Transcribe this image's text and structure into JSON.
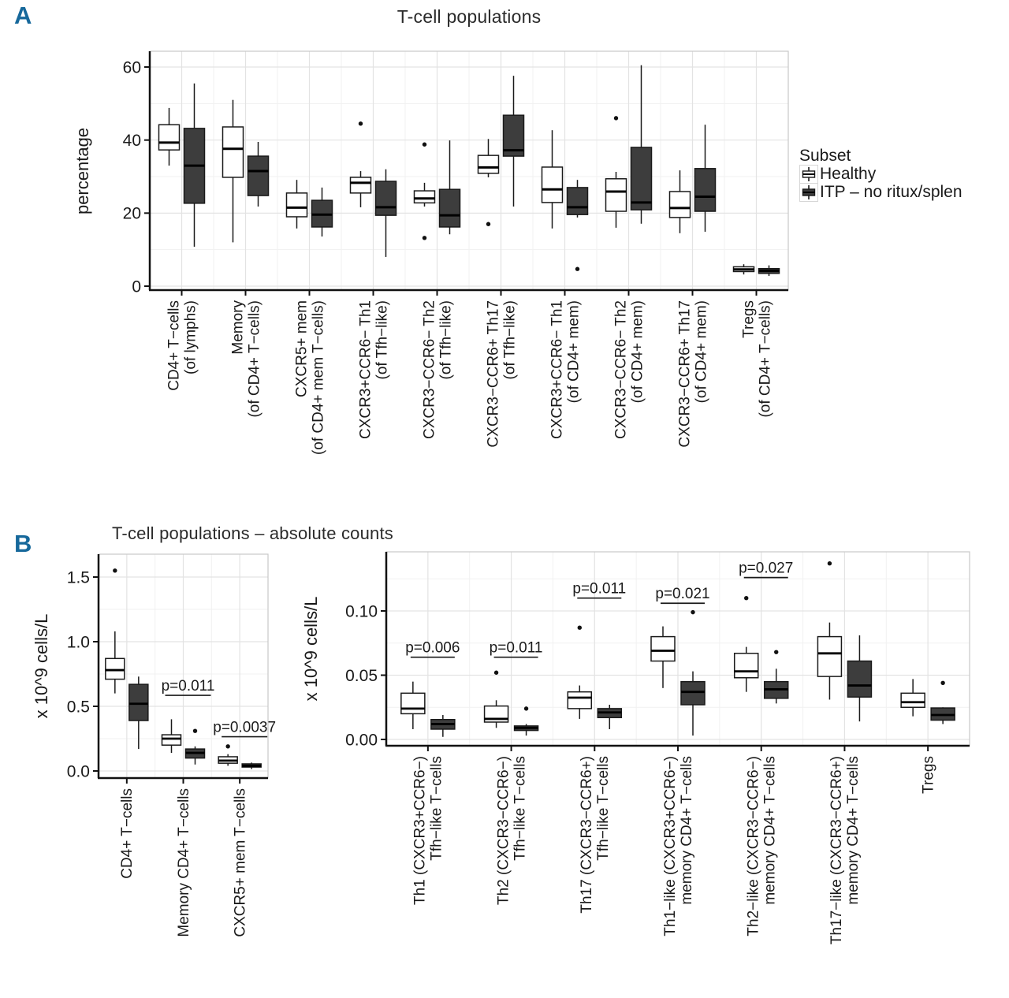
{
  "panel_a": {
    "label": "A",
    "title": "T-cell populations",
    "accent_color": "#16689B",
    "legend": {
      "title": "Subset",
      "items": [
        {
          "label": "Healthy",
          "fill": "#ffffff"
        },
        {
          "label": "ITP – no ritux/splen",
          "fill": "#3d3d3d"
        }
      ]
    }
  },
  "panel_b": {
    "label": "B",
    "title": "T-cell populations – absolute counts"
  },
  "chart_data": [
    {
      "id": "chart-panel-a",
      "type": "boxplot",
      "title": "T-cell populations",
      "ylabel": "percentage",
      "ylim": [
        0,
        64
      ],
      "yticks": [
        0,
        20,
        40,
        60
      ],
      "ytick_labels": [
        "0",
        "20",
        "40",
        "60"
      ],
      "grid": "on",
      "legend_position": "right",
      "categories": [
        [
          "CD4+ T−cells",
          "(of lymphs)"
        ],
        [
          "Memory",
          "(of CD4+ T−cells)"
        ],
        [
          "CXCR5+ mem",
          "(of CD4+ mem T−cells)"
        ],
        [
          "CXCR3+CCR6− Th1",
          "(of Tfh−like)"
        ],
        [
          "CXCR3−CCR6− Th2",
          "(of Tfh−like)"
        ],
        [
          "CXCR3−CCR6+ Th17",
          "(of Tfh−like)"
        ],
        [
          "CXCR3+CCR6− Th1",
          "(of CD4+ mem)"
        ],
        [
          "CXCR3−CCR6− Th2",
          "(of CD4+ mem)"
        ],
        [
          "CXCR3−CCR6+ Th17",
          "(of CD4+ mem)"
        ],
        [
          "Tregs",
          "(of CD4+ T−cells)"
        ]
      ],
      "series": [
        {
          "name": "Healthy",
          "fill": "#ffffff",
          "boxes": [
            {
              "whislo": 33.0,
              "q1": 37.3,
              "med": 39.3,
              "q3": 44.2,
              "whishi": 48.8,
              "outliers": []
            },
            {
              "whislo": 12.0,
              "q1": 29.8,
              "med": 37.6,
              "q3": 43.6,
              "whishi": 51.0,
              "outliers": []
            },
            {
              "whislo": 15.8,
              "q1": 19.0,
              "med": 21.5,
              "q3": 25.5,
              "whishi": 29.1,
              "outliers": []
            },
            {
              "whislo": 21.6,
              "q1": 25.5,
              "med": 28.3,
              "q3": 29.8,
              "whishi": 31.5,
              "outliers": [
                44.5
              ]
            },
            {
              "whislo": 21.8,
              "q1": 22.8,
              "med": 24.0,
              "q3": 26.1,
              "whishi": 28.3,
              "outliers": [
                38.8,
                13.2
              ]
            },
            {
              "whislo": 29.8,
              "q1": 30.9,
              "med": 32.5,
              "q3": 35.8,
              "whishi": 40.3,
              "outliers": [
                17.0
              ]
            },
            {
              "whislo": 15.8,
              "q1": 22.9,
              "med": 26.5,
              "q3": 32.6,
              "whishi": 42.7,
              "outliers": []
            },
            {
              "whislo": 16.0,
              "q1": 20.5,
              "med": 25.9,
              "q3": 29.4,
              "whishi": 31.3,
              "outliers": [
                46.0
              ]
            },
            {
              "whislo": 14.5,
              "q1": 18.8,
              "med": 21.4,
              "q3": 25.9,
              "whishi": 31.7,
              "outliers": []
            },
            {
              "whislo": 3.2,
              "q1": 4.0,
              "med": 4.6,
              "q3": 5.3,
              "whishi": 6.0,
              "outliers": []
            }
          ]
        },
        {
          "name": "ITP – no ritux/splen",
          "fill": "#3d3d3d",
          "boxes": [
            {
              "whislo": 10.8,
              "q1": 22.7,
              "med": 33.0,
              "q3": 43.2,
              "whishi": 55.5,
              "outliers": []
            },
            {
              "whislo": 21.8,
              "q1": 24.8,
              "med": 31.5,
              "q3": 35.6,
              "whishi": 39.5,
              "outliers": []
            },
            {
              "whislo": 13.6,
              "q1": 16.2,
              "med": 19.6,
              "q3": 23.5,
              "whishi": 27.0,
              "outliers": []
            },
            {
              "whislo": 8.0,
              "q1": 19.4,
              "med": 21.6,
              "q3": 28.7,
              "whishi": 32.0,
              "outliers": []
            },
            {
              "whislo": 14.2,
              "q1": 16.2,
              "med": 19.4,
              "q3": 26.5,
              "whishi": 39.9,
              "outliers": []
            },
            {
              "whislo": 21.8,
              "q1": 35.6,
              "med": 37.2,
              "q3": 46.8,
              "whishi": 57.6,
              "outliers": []
            },
            {
              "whislo": 18.8,
              "q1": 19.6,
              "med": 21.6,
              "q3": 27.0,
              "whishi": 29.1,
              "outliers": [
                4.7
              ]
            },
            {
              "whislo": 17.1,
              "q1": 20.9,
              "med": 22.9,
              "q3": 38.0,
              "whishi": 60.5,
              "outliers": []
            },
            {
              "whislo": 14.9,
              "q1": 20.5,
              "med": 24.5,
              "q3": 32.2,
              "whishi": 44.2,
              "outliers": []
            },
            {
              "whislo": 2.8,
              "q1": 3.5,
              "med": 4.2,
              "q3": 4.8,
              "whishi": 5.7,
              "outliers": []
            }
          ]
        }
      ],
      "annotations": []
    },
    {
      "id": "chart-panel-b-left",
      "type": "boxplot",
      "ylabel": "x 10^9 cells/L",
      "ylim": [
        0,
        1.66
      ],
      "yticks": [
        0,
        0.5,
        1.0,
        1.5
      ],
      "ytick_labels": [
        "0.0",
        "0.5",
        "1.0",
        "1.5"
      ],
      "grid": "on",
      "categories": [
        [
          "CD4+ T−cells"
        ],
        [
          "Memory CD4+ T−cells"
        ],
        [
          "CXCR5+ mem T−cells"
        ]
      ],
      "series": [
        {
          "name": "Healthy",
          "fill": "#ffffff",
          "boxes": [
            {
              "whislo": 0.6,
              "q1": 0.71,
              "med": 0.78,
              "q3": 0.87,
              "whishi": 1.08,
              "outliers": [
                1.55
              ]
            },
            {
              "whislo": 0.14,
              "q1": 0.2,
              "med": 0.25,
              "q3": 0.28,
              "whishi": 0.4,
              "outliers": []
            },
            {
              "whislo": 0.04,
              "q1": 0.06,
              "med": 0.08,
              "q3": 0.11,
              "whishi": 0.13,
              "outliers": [
                0.19
              ]
            }
          ]
        },
        {
          "name": "ITP – no ritux/splen",
          "fill": "#3d3d3d",
          "boxes": [
            {
              "whislo": 0.17,
              "q1": 0.39,
              "med": 0.52,
              "q3": 0.67,
              "whishi": 0.73,
              "outliers": []
            },
            {
              "whislo": 0.05,
              "q1": 0.1,
              "med": 0.14,
              "q3": 0.17,
              "whishi": 0.19,
              "outliers": [
                0.31
              ]
            },
            {
              "whislo": 0.015,
              "q1": 0.03,
              "med": 0.04,
              "q3": 0.055,
              "whishi": 0.065,
              "outliers": []
            }
          ]
        }
      ],
      "annotations": [
        {
          "category_index": 1,
          "text": "p=0.011",
          "line_y": 0.585
        },
        {
          "category_index": 2,
          "text": "p=0.0037",
          "line_y": 0.265
        }
      ]
    },
    {
      "id": "chart-panel-b-right",
      "type": "boxplot",
      "ylabel": "x 10^9 cells/L",
      "ylim": [
        0,
        0.146
      ],
      "yticks": [
        0,
        0.05,
        0.1
      ],
      "ytick_labels": [
        "0.00",
        "0.05",
        "0.10"
      ],
      "grid": "on",
      "categories": [
        [
          "Th1 (CXCR3+CCR6−)",
          "Tfh−like T−cells"
        ],
        [
          "Th2 (CXCR3−CCR6−)",
          "Tfh−like T−cells"
        ],
        [
          "Th17 (CXCR3−CCR6+)",
          "Tfh−like T−cells"
        ],
        [
          "Th1−like (CXCR3+CCR6−)",
          "memory CD4+ T−cells"
        ],
        [
          "Th2−like (CXCR3−CCR6−)",
          "memory CD4+ T−cells"
        ],
        [
          "Th17−like (CXCR3−CCR6+)",
          "memory CD4+ T−cells"
        ],
        [
          "Tregs"
        ]
      ],
      "series": [
        {
          "name": "Healthy",
          "fill": "#ffffff",
          "boxes": [
            {
              "whislo": 0.008,
              "q1": 0.02,
              "med": 0.024,
              "q3": 0.036,
              "whishi": 0.045,
              "outliers": []
            },
            {
              "whislo": 0.009,
              "q1": 0.0135,
              "med": 0.016,
              "q3": 0.026,
              "whishi": 0.0305,
              "outliers": [
                0.052
              ]
            },
            {
              "whislo": 0.016,
              "q1": 0.024,
              "med": 0.0325,
              "q3": 0.037,
              "whishi": 0.042,
              "outliers": [
                0.087
              ]
            },
            {
              "whislo": 0.04,
              "q1": 0.061,
              "med": 0.069,
              "q3": 0.08,
              "whishi": 0.088,
              "outliers": []
            },
            {
              "whislo": 0.037,
              "q1": 0.048,
              "med": 0.053,
              "q3": 0.067,
              "whishi": 0.072,
              "outliers": [
                0.11
              ]
            },
            {
              "whislo": 0.031,
              "q1": 0.049,
              "med": 0.067,
              "q3": 0.08,
              "whishi": 0.091,
              "outliers": [
                0.137
              ]
            },
            {
              "whislo": 0.018,
              "q1": 0.025,
              "med": 0.029,
              "q3": 0.036,
              "whishi": 0.047,
              "outliers": []
            }
          ]
        },
        {
          "name": "ITP – no ritux/splen",
          "fill": "#3d3d3d",
          "boxes": [
            {
              "whislo": 0.002,
              "q1": 0.008,
              "med": 0.012,
              "q3": 0.0155,
              "whishi": 0.019,
              "outliers": []
            },
            {
              "whislo": 0.003,
              "q1": 0.007,
              "med": 0.009,
              "q3": 0.0105,
              "whishi": 0.012,
              "outliers": [
                0.024
              ]
            },
            {
              "whislo": 0.008,
              "q1": 0.017,
              "med": 0.021,
              "q3": 0.024,
              "whishi": 0.027,
              "outliers": []
            },
            {
              "whislo": 0.003,
              "q1": 0.027,
              "med": 0.037,
              "q3": 0.045,
              "whishi": 0.053,
              "outliers": [
                0.099
              ]
            },
            {
              "whislo": 0.028,
              "q1": 0.032,
              "med": 0.039,
              "q3": 0.045,
              "whishi": 0.055,
              "outliers": [
                0.068
              ]
            },
            {
              "whislo": 0.014,
              "q1": 0.033,
              "med": 0.042,
              "q3": 0.061,
              "whishi": 0.081,
              "outliers": []
            },
            {
              "whislo": 0.012,
              "q1": 0.015,
              "med": 0.019,
              "q3": 0.0245,
              "whishi": 0.025,
              "outliers": [
                0.044
              ]
            }
          ]
        }
      ],
      "annotations": [
        {
          "category_index": 0,
          "text": "p=0.006",
          "line_y": 0.064
        },
        {
          "category_index": 1,
          "text": "p=0.011",
          "line_y": 0.064
        },
        {
          "category_index": 2,
          "text": "p=0.011",
          "line_y": 0.11
        },
        {
          "category_index": 3,
          "text": "p=0.021",
          "line_y": 0.106
        },
        {
          "category_index": 4,
          "text": "p=0.027",
          "line_y": 0.126
        }
      ]
    }
  ]
}
